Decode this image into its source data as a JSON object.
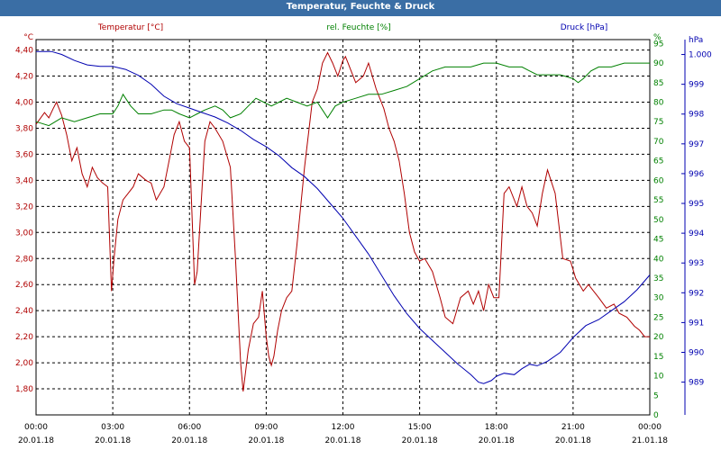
{
  "window": {
    "title": "Temperatur, Feuchte & Druck"
  },
  "chart_data": {
    "type": "line",
    "title": "Temperatur, Feuchte & Druck",
    "x_tick_labels": [
      [
        "00:00",
        "20.01.18"
      ],
      [
        "03:00",
        "20.01.18"
      ],
      [
        "06:00",
        "20.01.18"
      ],
      [
        "09:00",
        "20.01.18"
      ],
      [
        "12:00",
        "20.01.18"
      ],
      [
        "15:00",
        "20.01.18"
      ],
      [
        "18:00",
        "20.01.18"
      ],
      [
        "21:00",
        "20.01.18"
      ],
      [
        "00:00",
        "21.01.18"
      ]
    ],
    "x_range": [
      "20.01.18 00:00",
      "21.01.18 00:00"
    ],
    "grid": true,
    "legend": [
      {
        "name": "Temperatur [°C]",
        "color": "#b00000"
      },
      {
        "name": "rel. Feuchte [%]",
        "color": "#008000"
      },
      {
        "name": "Druck [hPa]",
        "color": "#0000b0"
      }
    ],
    "axes": {
      "temp": {
        "unit": "°C",
        "min": 1.6,
        "max": 4.48,
        "color": "#b00000",
        "ticks": [
          "4,40",
          "4,20",
          "4,00",
          "3,80",
          "3,60",
          "3,40",
          "3,20",
          "3,00",
          "2,80",
          "2,60",
          "2,40",
          "2,20",
          "2,00",
          "1,80"
        ],
        "tick_values": [
          4.4,
          4.2,
          4.0,
          3.8,
          3.6,
          3.4,
          3.2,
          3.0,
          2.8,
          2.6,
          2.4,
          2.2,
          2.0,
          1.8
        ]
      },
      "hum": {
        "unit": "%",
        "min": 0,
        "max": 96,
        "color": "#008000",
        "ticks": [
          "95",
          "90",
          "85",
          "80",
          "75",
          "70",
          "65",
          "60",
          "55",
          "50",
          "45",
          "40",
          "35",
          "30",
          "25",
          "20",
          "15",
          "10",
          "5",
          "0"
        ],
        "tick_values": [
          95,
          90,
          85,
          80,
          75,
          70,
          65,
          60,
          55,
          50,
          45,
          40,
          35,
          30,
          25,
          20,
          15,
          10,
          5,
          0
        ]
      },
      "press": {
        "unit": "hPa",
        "min": 987.9,
        "max": 1000.5,
        "color": "#0000b0",
        "ticks": [
          "1.000",
          "999",
          "998",
          "997",
          "996",
          "995",
          "994",
          "993",
          "992",
          "991",
          "990",
          "989"
        ],
        "tick_values": [
          1000,
          999,
          998,
          997,
          996,
          995,
          994,
          993,
          992,
          991,
          990,
          989
        ]
      }
    },
    "series": [
      {
        "name": "Temperatur [°C]",
        "axis": "temp",
        "color": "#b00000",
        "x": [
          0,
          0.33,
          0.5,
          0.67,
          0.8,
          1.0,
          1.2,
          1.4,
          1.6,
          1.8,
          2.0,
          2.2,
          2.4,
          2.6,
          2.8,
          2.95,
          3.05,
          3.2,
          3.4,
          3.6,
          3.8,
          4.0,
          4.3,
          4.5,
          4.7,
          5.0,
          5.2,
          5.4,
          5.6,
          5.8,
          6.0,
          6.2,
          6.3,
          6.45,
          6.6,
          6.8,
          7.0,
          7.3,
          7.6,
          7.8,
          8.0,
          8.1,
          8.3,
          8.5,
          8.7,
          8.85,
          9.0,
          9.1,
          9.2,
          9.3,
          9.45,
          9.6,
          9.8,
          10.0,
          10.2,
          10.5,
          10.8,
          11.0,
          11.2,
          11.4,
          11.6,
          11.8,
          12.0,
          12.1,
          12.2,
          12.3,
          12.5,
          12.8,
          13.0,
          13.3,
          13.6,
          13.8,
          14.0,
          14.2,
          14.4,
          14.6,
          14.8,
          15.0,
          15.2,
          15.5,
          15.8,
          16.0,
          16.3,
          16.6,
          16.9,
          17.1,
          17.3,
          17.5,
          17.7,
          17.9,
          18.1,
          18.3,
          18.5,
          18.8,
          19.0,
          19.2,
          19.4,
          19.6,
          19.8,
          20.0,
          20.3,
          20.6,
          20.9,
          21.1,
          21.4,
          21.6,
          21.8,
          22.0,
          22.3,
          22.6,
          22.8,
          23.1,
          23.4,
          23.6,
          23.8,
          24.0
        ],
        "values": [
          3.83,
          3.92,
          3.88,
          3.95,
          4.0,
          3.9,
          3.75,
          3.55,
          3.65,
          3.45,
          3.35,
          3.5,
          3.42,
          3.38,
          3.35,
          2.55,
          2.8,
          3.1,
          3.25,
          3.3,
          3.35,
          3.45,
          3.4,
          3.38,
          3.25,
          3.35,
          3.55,
          3.75,
          3.85,
          3.7,
          3.65,
          2.6,
          2.7,
          3.2,
          3.7,
          3.85,
          3.8,
          3.7,
          3.5,
          2.8,
          2.0,
          1.78,
          2.1,
          2.3,
          2.35,
          2.55,
          2.2,
          2.05,
          1.98,
          2.05,
          2.25,
          2.4,
          2.5,
          2.55,
          2.9,
          3.5,
          4.0,
          4.1,
          4.3,
          4.38,
          4.3,
          4.2,
          4.32,
          4.35,
          4.3,
          4.25,
          4.15,
          4.2,
          4.3,
          4.1,
          3.95,
          3.8,
          3.7,
          3.55,
          3.3,
          3.0,
          2.85,
          2.78,
          2.8,
          2.7,
          2.5,
          2.35,
          2.3,
          2.5,
          2.55,
          2.45,
          2.55,
          2.4,
          2.6,
          2.5,
          2.5,
          3.3,
          3.35,
          3.2,
          3.35,
          3.2,
          3.15,
          3.05,
          3.3,
          3.48,
          3.3,
          2.8,
          2.78,
          2.65,
          2.55,
          2.6,
          2.55,
          2.5,
          2.42,
          2.45,
          2.38,
          2.35,
          2.28,
          2.25,
          2.2,
          2.2
        ]
      },
      {
        "name": "rel. Feuchte [%]",
        "axis": "hum",
        "color": "#008000",
        "x": [
          0,
          0.5,
          1.0,
          1.5,
          2.0,
          2.5,
          3.0,
          3.2,
          3.4,
          3.7,
          4.0,
          4.5,
          5.0,
          5.3,
          5.6,
          6.0,
          6.3,
          6.6,
          7.0,
          7.3,
          7.6,
          8.0,
          8.3,
          8.6,
          8.9,
          9.2,
          9.5,
          9.8,
          10.2,
          10.6,
          11.0,
          11.2,
          11.4,
          11.7,
          12.0,
          12.5,
          13.0,
          13.5,
          14.0,
          14.5,
          15.0,
          15.5,
          16.0,
          16.5,
          17.0,
          17.5,
          18.0,
          18.5,
          19.0,
          19.3,
          19.6,
          20.0,
          20.5,
          21.0,
          21.2,
          21.4,
          21.7,
          22.0,
          22.5,
          23.0,
          23.5,
          24.0
        ],
        "values": [
          75,
          74,
          76,
          75,
          76,
          77,
          77,
          79,
          82,
          79,
          77,
          77,
          78,
          78,
          77,
          76,
          77,
          78,
          79,
          78,
          76,
          77,
          79,
          81,
          80,
          79,
          80,
          81,
          80,
          79,
          80,
          78,
          76,
          79,
          80,
          81,
          82,
          82,
          83,
          84,
          86,
          88,
          89,
          89,
          89,
          90,
          90,
          89,
          89,
          88,
          87,
          87,
          87,
          86,
          85,
          86,
          88,
          89,
          89,
          90,
          90,
          90
        ]
      },
      {
        "name": "Druck [hPa]",
        "axis": "press",
        "color": "#0000b0",
        "x": [
          0,
          0.3,
          0.6,
          1.0,
          1.5,
          2.0,
          2.5,
          3.0,
          3.5,
          4.0,
          4.5,
          5.0,
          5.5,
          6.0,
          6.5,
          7.0,
          7.5,
          8.0,
          8.5,
          9.0,
          9.5,
          10.0,
          10.5,
          11.0,
          11.5,
          12.0,
          12.5,
          13.0,
          13.5,
          14.0,
          14.5,
          15.0,
          15.5,
          16.0,
          16.5,
          17.0,
          17.3,
          17.5,
          17.8,
          18.0,
          18.3,
          18.7,
          19.0,
          19.3,
          19.6,
          20.0,
          20.5,
          21.0,
          21.5,
          22.0,
          22.5,
          23.0,
          23.5,
          24.0
        ],
        "values": [
          1000.1,
          1000.1,
          1000.1,
          1000.0,
          999.8,
          999.65,
          999.6,
          999.6,
          999.5,
          999.3,
          999.0,
          998.6,
          998.35,
          998.2,
          998.05,
          997.9,
          997.7,
          997.45,
          997.15,
          996.9,
          996.6,
          996.2,
          995.9,
          995.5,
          995.0,
          994.5,
          993.9,
          993.3,
          992.6,
          991.9,
          991.3,
          990.8,
          990.4,
          990.0,
          989.6,
          989.25,
          989.0,
          988.95,
          989.05,
          989.2,
          989.3,
          989.25,
          989.45,
          989.6,
          989.55,
          989.7,
          990.0,
          990.5,
          990.9,
          991.1,
          991.4,
          991.7,
          992.1,
          992.6
        ]
      }
    ]
  }
}
